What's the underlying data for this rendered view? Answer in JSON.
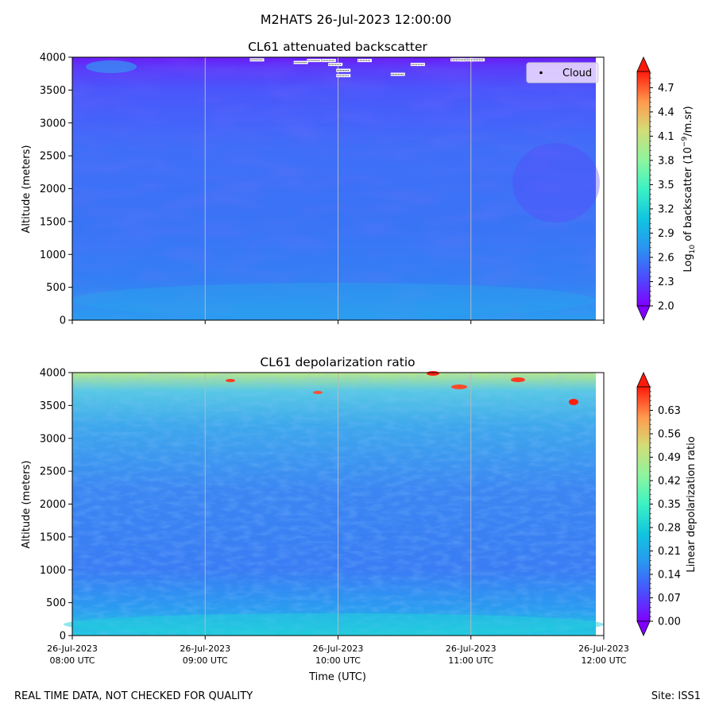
{
  "suptitle": "M2HATS 26-Jul-2023 12:00:00",
  "footer_left": "REAL TIME DATA, NOT CHECKED FOR QUALITY",
  "footer_right": "Site: ISS1",
  "chart_data": [
    {
      "type": "heatmap",
      "title": "CL61 attenuated backscatter",
      "xlabel": "",
      "ylabel": "Altitude (meters)",
      "xlim": [
        "2023-07-26 08:00",
        "2023-07-26 12:00"
      ],
      "ylim": [
        0,
        4000
      ],
      "yticks": [
        0,
        500,
        1000,
        1500,
        2000,
        2500,
        3000,
        3500,
        4000
      ],
      "xticks": [
        "08:00",
        "09:00",
        "10:00",
        "11:00",
        "12:00"
      ],
      "show_xticklabels": false,
      "legend": {
        "entries": [
          "Cloud"
        ],
        "placement": "top-right"
      },
      "cloud_points": [
        {
          "t": 1.39,
          "z": 3960
        },
        {
          "t": 1.72,
          "z": 3920
        },
        {
          "t": 1.82,
          "z": 3950
        },
        {
          "t": 1.93,
          "z": 3950
        },
        {
          "t": 1.98,
          "z": 3890
        },
        {
          "t": 2.04,
          "z": 3800
        },
        {
          "t": 2.04,
          "z": 3720
        },
        {
          "t": 2.2,
          "z": 3950
        },
        {
          "t": 2.45,
          "z": 3740
        },
        {
          "t": 2.6,
          "z": 3890
        },
        {
          "t": 2.9,
          "z": 3960
        },
        {
          "t": 2.97,
          "z": 3960
        },
        {
          "t": 3.05,
          "z": 3960
        }
      ],
      "colorbar": {
        "label": "Log10 of backscatter (10^-9/m.sr)",
        "label_main": "Log",
        "label_sub": "10",
        "label_mid": " of backscatter (10",
        "label_sup": "−9",
        "label_end": "/m.sr)",
        "range": [
          2.0,
          4.9
        ],
        "ticks": [
          "2.0",
          "2.3",
          "2.6",
          "2.9",
          "3.2",
          "3.5",
          "3.8",
          "4.1",
          "4.4",
          "4.7"
        ],
        "extend": "both"
      }
    },
    {
      "type": "heatmap",
      "title": "CL61 depolarization ratio",
      "xlabel": "Time (UTC)",
      "ylabel": "Altitude (meters)",
      "xlim": [
        "2023-07-26 08:00",
        "2023-07-26 12:00"
      ],
      "ylim": [
        0,
        4000
      ],
      "yticks": [
        0,
        500,
        1000,
        1500,
        2000,
        2500,
        3000,
        3500,
        4000
      ],
      "xtick_labels": [
        {
          "date": "26-Jul-2023",
          "time": "08:00 UTC"
        },
        {
          "date": "26-Jul-2023",
          "time": "09:00 UTC"
        },
        {
          "date": "26-Jul-2023",
          "time": "10:00 UTC"
        },
        {
          "date": "26-Jul-2023",
          "time": "11:00 UTC"
        },
        {
          "date": "26-Jul-2023",
          "time": "12:00 UTC"
        }
      ],
      "colorbar": {
        "label": "Linear depolarization ratio",
        "range": [
          0.0,
          0.7
        ],
        "ticks": [
          "0.00",
          "0.07",
          "0.14",
          "0.21",
          "0.28",
          "0.35",
          "0.42",
          "0.49",
          "0.56",
          "0.63"
        ],
        "extend": "both"
      }
    }
  ]
}
